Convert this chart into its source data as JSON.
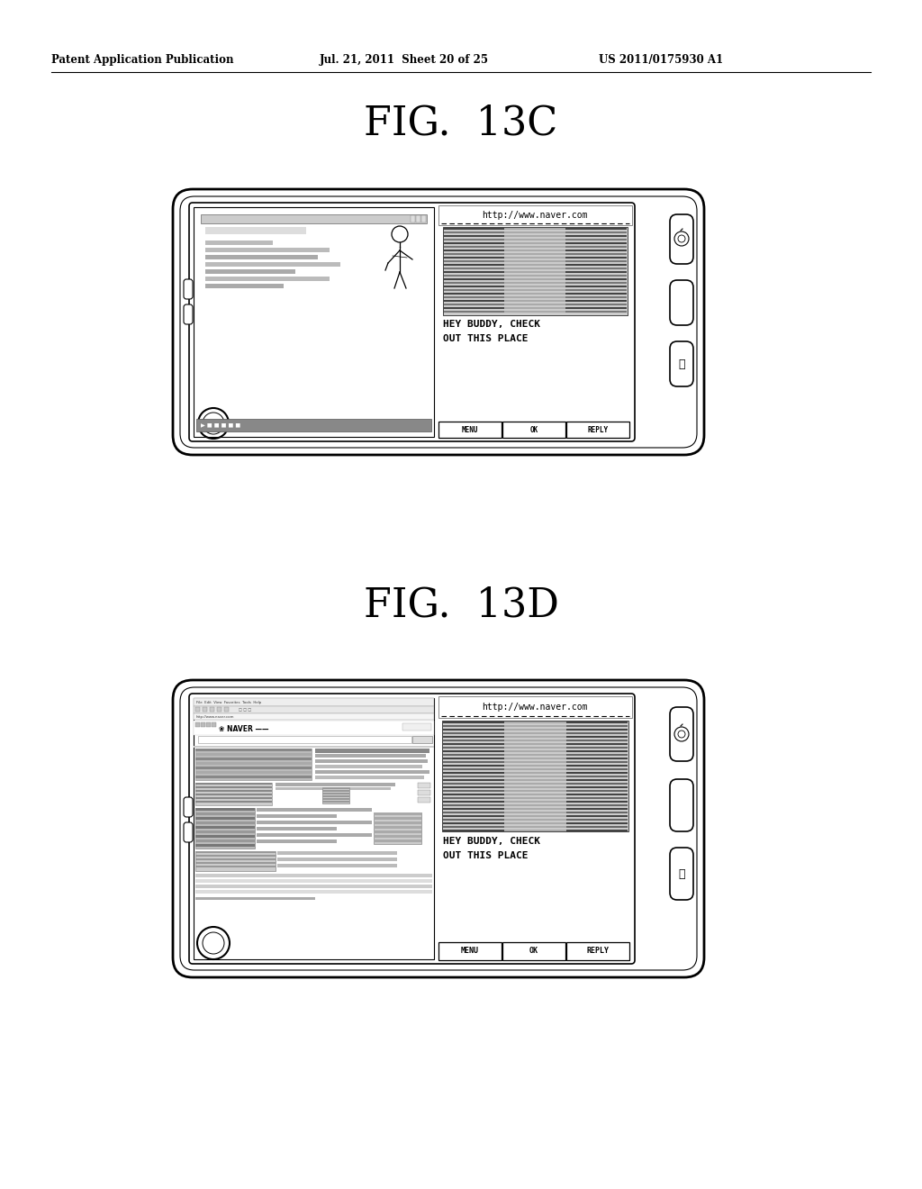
{
  "bg_color": "#ffffff",
  "header_left": "Patent Application Publication",
  "header_mid": "Jul. 21, 2011  Sheet 20 of 25",
  "header_right": "US 2011/0175930 A1",
  "fig1_label": "FIG.  13C",
  "fig2_label": "FIG.  13D",
  "url_text": "http://www.naver.com",
  "message_text_1": "HEY BUDDY, CHECK",
  "message_text_2": "OUT THIS PLACE",
  "btn1": "MENU",
  "btn2": "OK",
  "btn3": "REPLY",
  "naver_text": "NAVER"
}
